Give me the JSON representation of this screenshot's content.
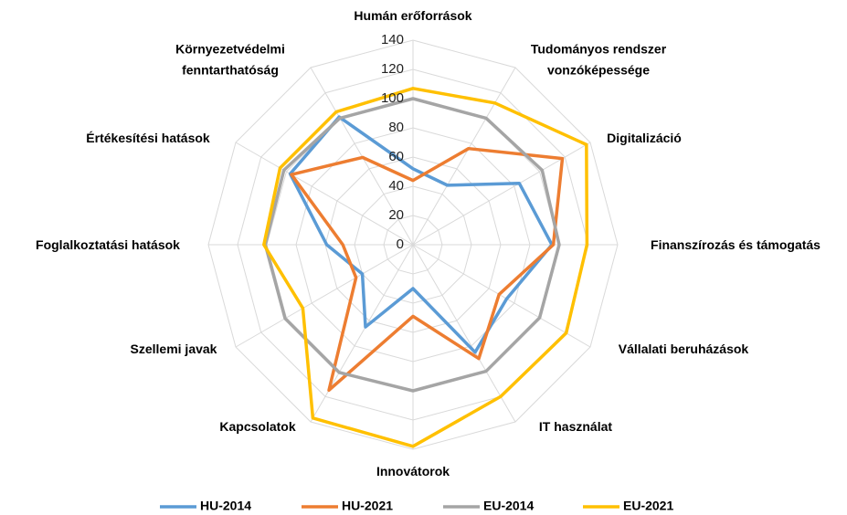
{
  "chart_data": {
    "type": "radar",
    "categories": [
      "Humán erőforrások",
      "Tudományos rendszer\nvonzóképessége",
      "Digitalizáció",
      "Finanszírozás és támogatás",
      "Vállalati beruházások",
      "IT használat",
      "Innovátorok",
      "Kapcsolatok",
      "Szellemi javak",
      "Foglalkoztatási hatások",
      "Értékesítési hatások",
      "Környezetvédelmi\nfenntarthatóság"
    ],
    "series": [
      {
        "name": "HU-2014",
        "color": "#5b9bd5",
        "values": [
          52,
          47,
          84,
          95,
          74,
          85,
          30,
          65,
          40,
          59,
          97,
          101
        ]
      },
      {
        "name": "HU-2021",
        "color": "#ed7d31",
        "values": [
          44,
          76,
          118,
          96,
          68,
          90,
          49,
          115,
          45,
          48,
          96,
          69
        ]
      },
      {
        "name": "EU-2014",
        "color": "#a5a5a5",
        "values": [
          100,
          100,
          102,
          100,
          100,
          100,
          100,
          101,
          101,
          101,
          102,
          100
        ]
      },
      {
        "name": "EU-2021",
        "color": "#ffc000",
        "values": [
          107,
          112,
          137,
          119,
          121,
          120,
          138,
          137,
          87,
          102,
          105,
          105
        ]
      }
    ],
    "ylim": [
      0,
      140
    ],
    "yticks": [
      0,
      20,
      40,
      60,
      80,
      100,
      120,
      140
    ],
    "grid": true,
    "legend": "bottom"
  }
}
